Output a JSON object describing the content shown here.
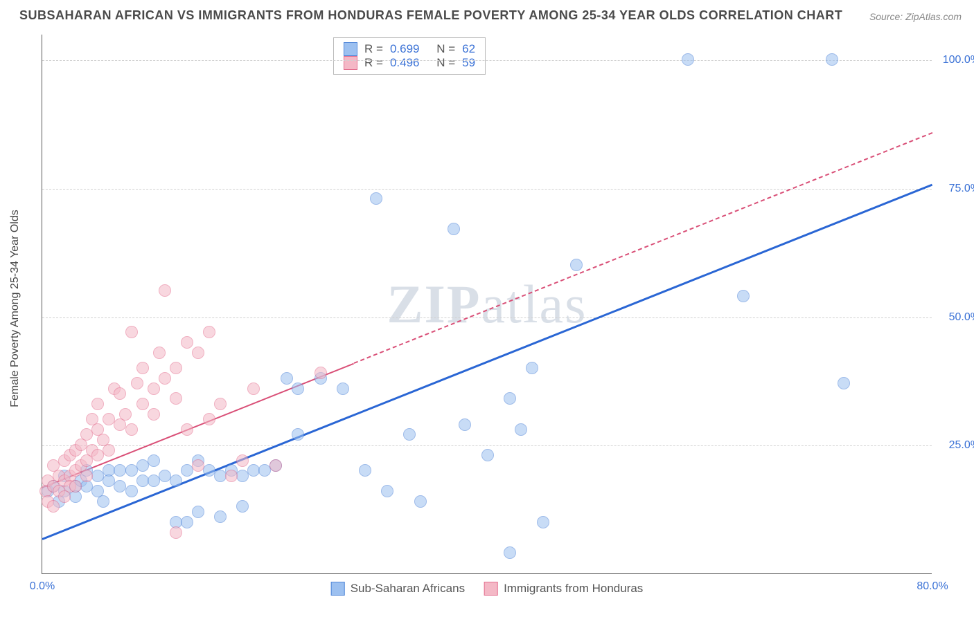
{
  "title": "SUBSAHARAN AFRICAN VS IMMIGRANTS FROM HONDURAS FEMALE POVERTY AMONG 25-34 YEAR OLDS CORRELATION CHART",
  "source": "Source: ZipAtlas.com",
  "ylabel": "Female Poverty Among 25-34 Year Olds",
  "watermark_a": "ZIP",
  "watermark_b": "atlas",
  "chart": {
    "type": "scatter",
    "xlim": [
      0,
      80
    ],
    "ylim": [
      0,
      105
    ],
    "xticks": [
      {
        "v": 0,
        "l": "0.0%"
      },
      {
        "v": 80,
        "l": "80.0%"
      }
    ],
    "yticks": [
      {
        "v": 25,
        "l": "25.0%"
      },
      {
        "v": 50,
        "l": "50.0%"
      },
      {
        "v": 75,
        "l": "75.0%"
      },
      {
        "v": 100,
        "l": "100.0%"
      }
    ],
    "grid_color": "#d0d0d0",
    "background_color": "#ffffff",
    "marker_radius": 9,
    "marker_opacity": 0.55,
    "series": [
      {
        "name": "Sub-Saharan Africans",
        "color_fill": "#9cc0f0",
        "color_stroke": "#4f85d8",
        "R": "0.699",
        "N": "62",
        "trend": {
          "x1": 0,
          "y1": 7,
          "x2": 80,
          "y2": 76,
          "stroke": "#2a66d4",
          "width": 3,
          "dash": "none",
          "dash_from_x": 80
        },
        "points": [
          [
            0.5,
            16
          ],
          [
            1,
            17
          ],
          [
            1.5,
            14
          ],
          [
            2,
            19
          ],
          [
            2,
            16
          ],
          [
            3,
            17
          ],
          [
            3,
            15
          ],
          [
            3.5,
            18
          ],
          [
            4,
            17
          ],
          [
            4,
            20
          ],
          [
            5,
            16
          ],
          [
            5,
            19
          ],
          [
            5.5,
            14
          ],
          [
            6,
            20
          ],
          [
            6,
            18
          ],
          [
            7,
            17
          ],
          [
            7,
            20
          ],
          [
            8,
            16
          ],
          [
            8,
            20
          ],
          [
            9,
            18
          ],
          [
            9,
            21
          ],
          [
            10,
            18
          ],
          [
            10,
            22
          ],
          [
            11,
            19
          ],
          [
            12,
            18
          ],
          [
            12,
            10
          ],
          [
            13,
            20
          ],
          [
            13,
            10
          ],
          [
            14,
            12
          ],
          [
            14,
            22
          ],
          [
            15,
            20
          ],
          [
            16,
            11
          ],
          [
            16,
            19
          ],
          [
            17,
            20
          ],
          [
            18,
            19
          ],
          [
            18,
            13
          ],
          [
            19,
            20
          ],
          [
            20,
            20
          ],
          [
            21,
            21
          ],
          [
            22,
            38
          ],
          [
            23,
            36
          ],
          [
            23,
            27
          ],
          [
            25,
            38
          ],
          [
            27,
            36
          ],
          [
            29,
            20
          ],
          [
            30,
            73
          ],
          [
            31,
            16
          ],
          [
            33,
            27
          ],
          [
            34,
            14
          ],
          [
            37,
            67
          ],
          [
            38,
            29
          ],
          [
            42,
            34
          ],
          [
            42,
            4
          ],
          [
            43,
            28
          ],
          [
            44,
            40
          ],
          [
            48,
            60
          ],
          [
            58,
            100
          ],
          [
            63,
            54
          ],
          [
            71,
            100
          ],
          [
            72,
            37
          ],
          [
            45,
            10
          ],
          [
            40,
            23
          ]
        ]
      },
      {
        "name": "Immigrants from Honduras",
        "color_fill": "#f4b8c6",
        "color_stroke": "#e46f8f",
        "R": "0.496",
        "N": "59",
        "trend": {
          "x1": 0,
          "y1": 17,
          "x2": 80,
          "y2": 86,
          "stroke": "#d94f77",
          "width": 2.5,
          "dash": "5,5",
          "dash_from_x": 28
        },
        "points": [
          [
            0.3,
            16
          ],
          [
            0.5,
            18
          ],
          [
            0.5,
            14
          ],
          [
            1,
            17
          ],
          [
            1,
            21
          ],
          [
            1,
            13
          ],
          [
            1.5,
            19
          ],
          [
            1.5,
            16
          ],
          [
            2,
            22
          ],
          [
            2,
            18
          ],
          [
            2,
            15
          ],
          [
            2.5,
            23
          ],
          [
            2.5,
            19
          ],
          [
            2.5,
            17
          ],
          [
            3,
            24
          ],
          [
            3,
            20
          ],
          [
            3,
            17
          ],
          [
            3.5,
            25
          ],
          [
            3.5,
            21
          ],
          [
            4,
            27
          ],
          [
            4,
            22
          ],
          [
            4,
            19
          ],
          [
            4.5,
            30
          ],
          [
            4.5,
            24
          ],
          [
            5,
            28
          ],
          [
            5,
            23
          ],
          [
            5,
            33
          ],
          [
            5.5,
            26
          ],
          [
            6,
            30
          ],
          [
            6,
            24
          ],
          [
            6.5,
            36
          ],
          [
            7,
            29
          ],
          [
            7,
            35
          ],
          [
            7.5,
            31
          ],
          [
            8,
            47
          ],
          [
            8,
            28
          ],
          [
            8.5,
            37
          ],
          [
            9,
            33
          ],
          [
            9,
            40
          ],
          [
            10,
            36
          ],
          [
            10,
            31
          ],
          [
            10.5,
            43
          ],
          [
            11,
            38
          ],
          [
            11,
            55
          ],
          [
            12,
            34
          ],
          [
            12,
            40
          ],
          [
            13,
            45
          ],
          [
            13,
            28
          ],
          [
            14,
            43
          ],
          [
            14,
            21
          ],
          [
            15,
            47
          ],
          [
            15,
            30
          ],
          [
            16,
            33
          ],
          [
            17,
            19
          ],
          [
            18,
            22
          ],
          [
            19,
            36
          ],
          [
            21,
            21
          ],
          [
            25,
            39
          ],
          [
            12,
            8
          ]
        ]
      }
    ]
  },
  "legend": {
    "series1_label": "Sub-Saharan Africans",
    "series2_label": "Immigrants from Honduras",
    "r_label": "R =",
    "n_label": "N ="
  }
}
